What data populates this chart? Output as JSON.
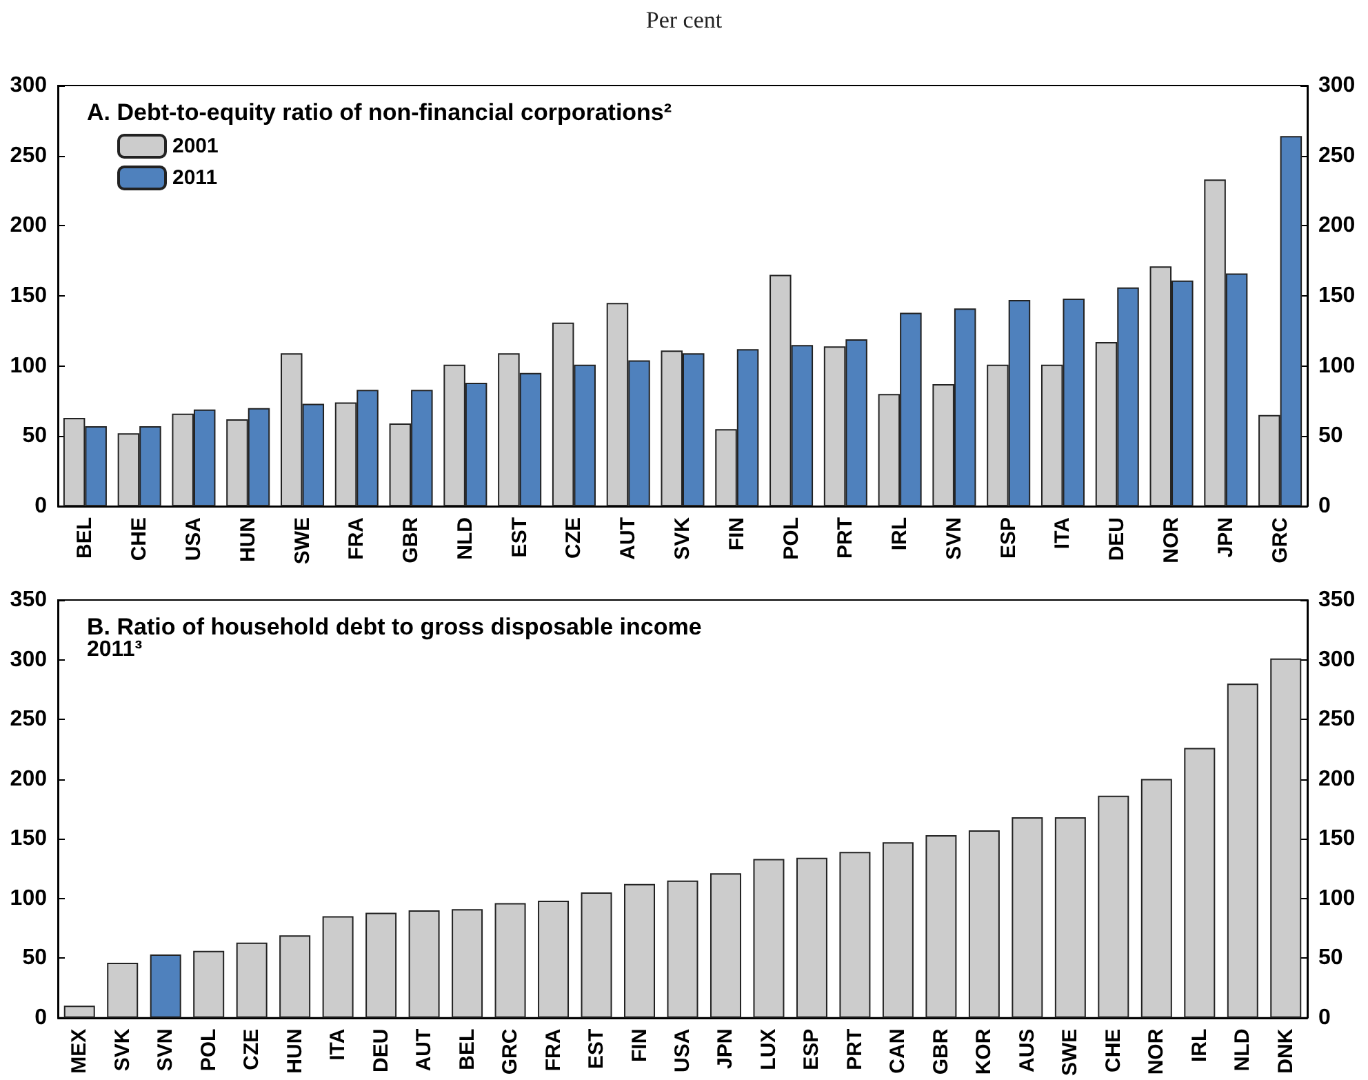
{
  "chart_data": [
    {
      "type": "bar",
      "title": "A. Debt-to-equity ratio of non-financial corporations²",
      "annotations": [
        "Per cent"
      ],
      "categories": [
        "BEL",
        "CHE",
        "USA",
        "HUN",
        "SWE",
        "FRA",
        "GBR",
        "NLD",
        "EST",
        "CZE",
        "AUT",
        "SVK",
        "FIN",
        "POL",
        "PRT",
        "IRL",
        "SVN",
        "ESP",
        "ITA",
        "DEU",
        "NOR",
        "JPN",
        "GRC"
      ],
      "series": [
        {
          "name": "2001",
          "color": "#cccccc",
          "values": [
            63,
            52,
            66,
            62,
            109,
            74,
            59,
            101,
            109,
            131,
            145,
            111,
            55,
            165,
            114,
            80,
            87,
            101,
            101,
            117,
            171,
            233,
            65
          ]
        },
        {
          "name": "2011",
          "color": "#4f81bd",
          "values": [
            57,
            57,
            69,
            70,
            73,
            83,
            83,
            88,
            95,
            101,
            104,
            109,
            112,
            115,
            119,
            138,
            141,
            147,
            148,
            156,
            161,
            166,
            264
          ]
        }
      ],
      "ylim": [
        0,
        300
      ],
      "yticks": [
        0,
        50,
        100,
        150,
        200,
        250,
        300
      ],
      "y2lim": [
        0,
        300
      ],
      "y2ticks": [
        0,
        50,
        100,
        150,
        200,
        250,
        300
      ],
      "legend": "top left"
    },
    {
      "type": "bar",
      "title": "B. Ratio of household debt to gross disposable income",
      "subtitle": "2011³",
      "categories": [
        "MEX",
        "SVK",
        "SVN",
        "POL",
        "CZE",
        "HUN",
        "ITA",
        "DEU",
        "AUT",
        "BEL",
        "GRC",
        "FRA",
        "EST",
        "FIN",
        "USA",
        "JPN",
        "LUX",
        "ESP",
        "PRT",
        "CAN",
        "GBR",
        "KOR",
        "AUS",
        "SWE",
        "CHE",
        "NOR",
        "IRL",
        "NLD",
        "DNK"
      ],
      "values": [
        10,
        46,
        53,
        56,
        63,
        69,
        85,
        88,
        90,
        91,
        96,
        98,
        105,
        112,
        115,
        121,
        133,
        134,
        139,
        147,
        153,
        157,
        168,
        168,
        186,
        200,
        226,
        280,
        301
      ],
      "colors": [
        "#cccccc",
        "#cccccc",
        "#4f81bd",
        "#cccccc",
        "#cccccc",
        "#cccccc",
        "#cccccc",
        "#cccccc",
        "#cccccc",
        "#cccccc",
        "#cccccc",
        "#cccccc",
        "#cccccc",
        "#cccccc",
        "#cccccc",
        "#cccccc",
        "#cccccc",
        "#cccccc",
        "#cccccc",
        "#cccccc",
        "#cccccc",
        "#cccccc",
        "#cccccc",
        "#cccccc",
        "#cccccc",
        "#cccccc",
        "#cccccc",
        "#cccccc",
        "#cccccc"
      ],
      "ylim": [
        0,
        350
      ],
      "yticks": [
        0,
        50,
        100,
        150,
        200,
        250,
        300,
        350
      ],
      "y2lim": [
        0,
        350
      ],
      "y2ticks": [
        0,
        50,
        100,
        150,
        200,
        250,
        300,
        350
      ]
    }
  ]
}
